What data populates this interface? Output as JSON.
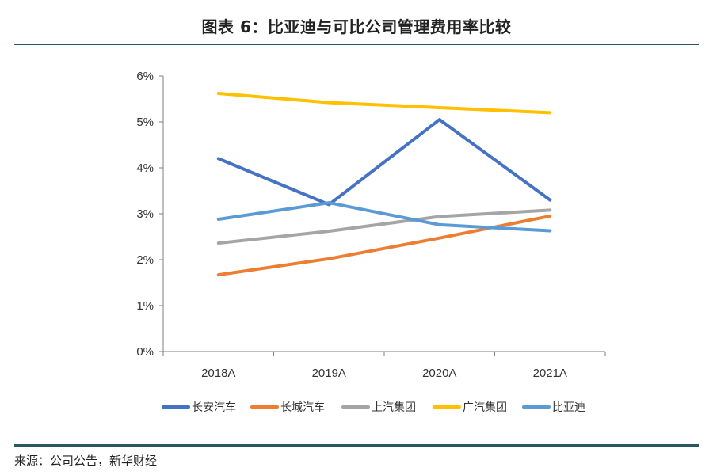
{
  "title": "图表 6：比亚迪与可比公司管理费用率比较",
  "source": "来源：公司公告，新华财经",
  "chart_data": {
    "type": "line",
    "categories": [
      "2018A",
      "2019A",
      "2020A",
      "2021A"
    ],
    "y_ticks": [
      "0%",
      "1%",
      "2%",
      "3%",
      "4%",
      "5%",
      "6%"
    ],
    "ylim": [
      0,
      6
    ],
    "unit": "%",
    "grid": false,
    "legend_position": "bottom",
    "series": [
      {
        "name": "长安汽车",
        "color": "#4472c4",
        "values": [
          4.2,
          3.2,
          5.05,
          3.3
        ]
      },
      {
        "name": "长城汽车",
        "color": "#ed7d31",
        "values": [
          1.67,
          2.02,
          2.47,
          2.95
        ]
      },
      {
        "name": "上汽集团",
        "color": "#a5a5a5",
        "values": [
          2.36,
          2.62,
          2.94,
          3.08
        ]
      },
      {
        "name": "广汽集团",
        "color": "#ffc000",
        "values": [
          5.62,
          5.42,
          5.31,
          5.2
        ]
      },
      {
        "name": "比亚迪",
        "color": "#5b9bd5",
        "values": [
          2.88,
          3.24,
          2.76,
          2.63
        ]
      }
    ]
  }
}
